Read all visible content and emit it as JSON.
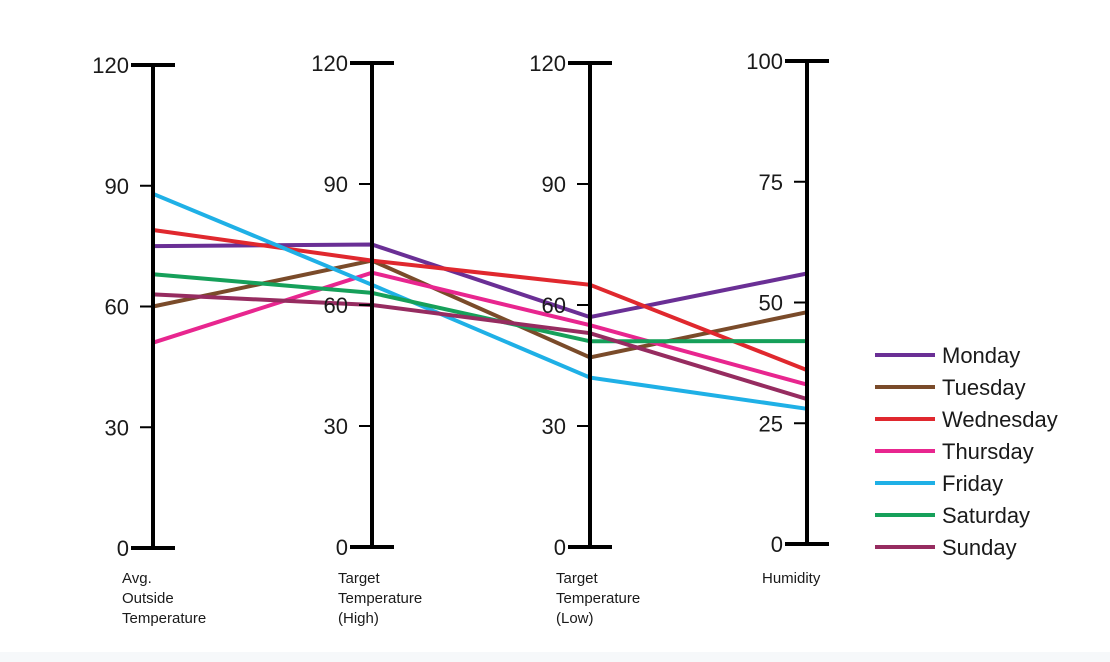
{
  "chart_data": {
    "type": "parallel-coordinates",
    "axes": [
      {
        "label_lines": [
          "Avg.",
          "Outside",
          "Temperature"
        ],
        "range": [
          0,
          120
        ],
        "ticks": [
          0,
          30,
          60,
          90,
          120
        ]
      },
      {
        "label_lines": [
          "Target",
          "Temperature",
          "(High)"
        ],
        "range": [
          0,
          120
        ],
        "ticks": [
          0,
          30,
          60,
          90,
          120
        ]
      },
      {
        "label_lines": [
          "Target",
          "Temperature",
          "(Low)"
        ],
        "range": [
          0,
          120
        ],
        "ticks": [
          0,
          30,
          60,
          90,
          120
        ]
      },
      {
        "label_lines": [
          "Humidity"
        ],
        "range": [
          0,
          100
        ],
        "ticks": [
          0,
          25,
          50,
          75,
          100
        ]
      }
    ],
    "series": [
      {
        "name": "Monday",
        "color": "#6a2f95",
        "values": [
          75,
          75,
          57,
          56
        ]
      },
      {
        "name": "Tuesday",
        "color": "#7a4b2a",
        "values": [
          60,
          71,
          47,
          48
        ]
      },
      {
        "name": "Wednesday",
        "color": "#e0282e",
        "values": [
          79,
          71,
          65,
          36
        ]
      },
      {
        "name": "Thursday",
        "color": "#e8268f",
        "values": [
          51,
          68,
          55,
          33
        ]
      },
      {
        "name": "Friday",
        "color": "#1fb0e6",
        "values": [
          88,
          65,
          42,
          28
        ]
      },
      {
        "name": "Saturday",
        "color": "#16a05a",
        "values": [
          68,
          63,
          51,
          42
        ]
      },
      {
        "name": "Sunday",
        "color": "#962c60",
        "values": [
          63,
          60,
          53,
          30
        ]
      }
    ],
    "legend_position": "right",
    "grid": false
  }
}
